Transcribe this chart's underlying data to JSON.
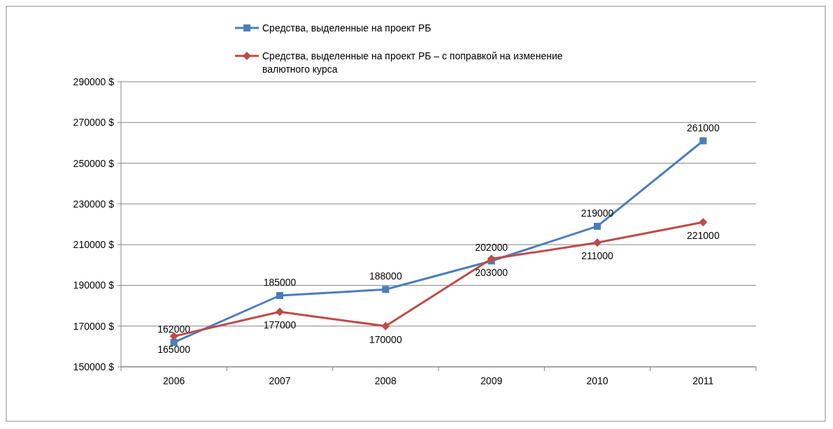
{
  "chart_data": {
    "type": "line",
    "categories": [
      "2006",
      "2007",
      "2008",
      "2009",
      "2010",
      "2011"
    ],
    "series": [
      {
        "name": "Средства, выделенные  на проект РБ",
        "color": "#4a7ebb",
        "marker": "square",
        "values": [
          162000,
          185000,
          188000,
          202000,
          219000,
          261000
        ]
      },
      {
        "name": "Средства, выделенные  на проект РБ – с поправкой на изменение валютного курса",
        "color": "#be4b48",
        "marker": "diamond",
        "values": [
          165000,
          177000,
          170000,
          203000,
          211000,
          221000
        ]
      }
    ],
    "ylim": [
      150000,
      290000
    ],
    "yticks": [
      {
        "value": 150000,
        "label": "150000 $"
      },
      {
        "value": 170000,
        "label": "170000 $"
      },
      {
        "value": 190000,
        "label": "190000 $"
      },
      {
        "value": 210000,
        "label": "210000 $"
      },
      {
        "value": 230000,
        "label": "230000 $"
      },
      {
        "value": 250000,
        "label": "250000 $"
      },
      {
        "value": 270000,
        "label": "270000 $"
      },
      {
        "value": 290000,
        "label": "290000 $"
      }
    ],
    "grid": "y",
    "legend": "top",
    "data_labels": true,
    "line_style": "solid"
  }
}
